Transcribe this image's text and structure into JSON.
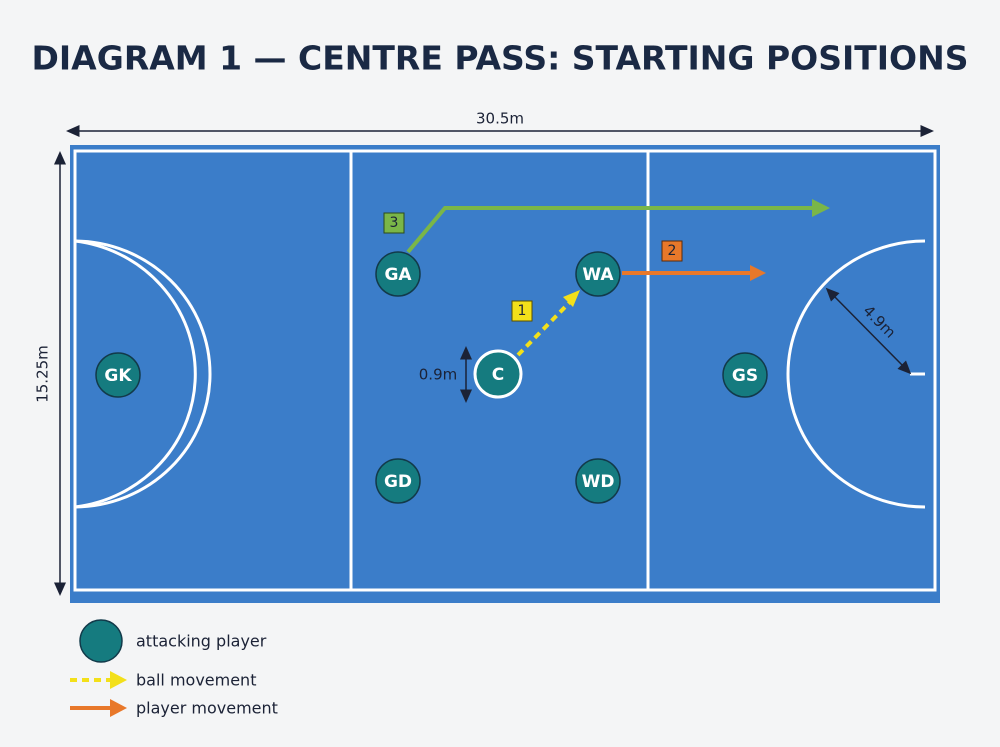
{
  "header": {
    "title": "DIAGRAM 1 — CENTRE PASS: STARTING POSITIONS"
  },
  "dimensions": {
    "length": "30.5m",
    "width": "15.25m",
    "centre_circle": "0.9m",
    "goal_circle": "4.9m"
  },
  "players": [
    {
      "label": "GK"
    },
    {
      "label": "GA"
    },
    {
      "label": "WA"
    },
    {
      "label": "C"
    },
    {
      "label": "GD"
    },
    {
      "label": "WD"
    },
    {
      "label": "GS"
    }
  ],
  "steps": [
    {
      "label": "1"
    },
    {
      "label": "2"
    },
    {
      "label": "3"
    }
  ],
  "legend": [
    {
      "label": "attacking player"
    },
    {
      "label": "ball movement"
    },
    {
      "label": "player movement"
    }
  ]
}
